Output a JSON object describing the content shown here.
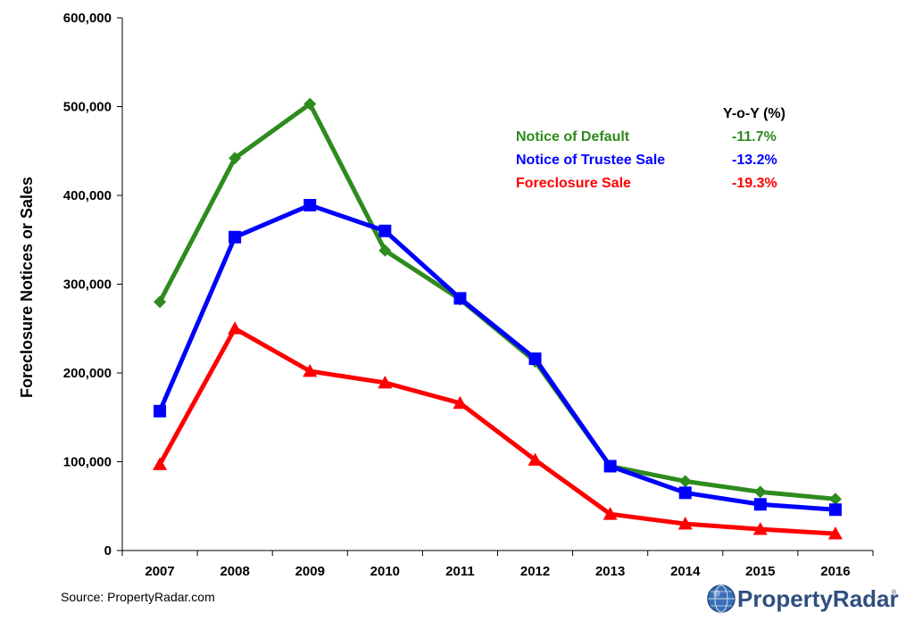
{
  "chart_data": {
    "type": "line",
    "x": [
      "2007",
      "2008",
      "2009",
      "2010",
      "2011",
      "2012",
      "2013",
      "2014",
      "2015",
      "2016"
    ],
    "ylabel": "Foreclosure Notices or Sales",
    "ylim": [
      0,
      600000
    ],
    "yticks": [
      "0",
      "100,000",
      "200,000",
      "300,000",
      "400,000",
      "500,000",
      "600,000"
    ],
    "legend_header": "Y-o-Y (%)",
    "series": [
      {
        "name": "Notice of Default",
        "yoy": "-11.7%",
        "color": "#2e8b1e",
        "marker": "diamond",
        "values": [
          280000,
          442000,
          503000,
          338000,
          283000,
          213000,
          95000,
          78000,
          66000,
          58000
        ]
      },
      {
        "name": "Notice of Trustee Sale",
        "yoy": "-13.2%",
        "color": "#0000ff",
        "marker": "square",
        "values": [
          157000,
          353000,
          389000,
          360000,
          284000,
          216000,
          95000,
          65000,
          52000,
          46000
        ]
      },
      {
        "name": "Foreclosure Sale",
        "yoy": "-19.3%",
        "color": "#ff0000",
        "marker": "triangle",
        "values": [
          97000,
          250000,
          202000,
          189000,
          166000,
          102000,
          41000,
          30000,
          24000,
          19000
        ]
      }
    ]
  },
  "source": "Source: PropertyRadar.com",
  "logo": {
    "text": "PropertyRadar",
    "mark": "®"
  }
}
